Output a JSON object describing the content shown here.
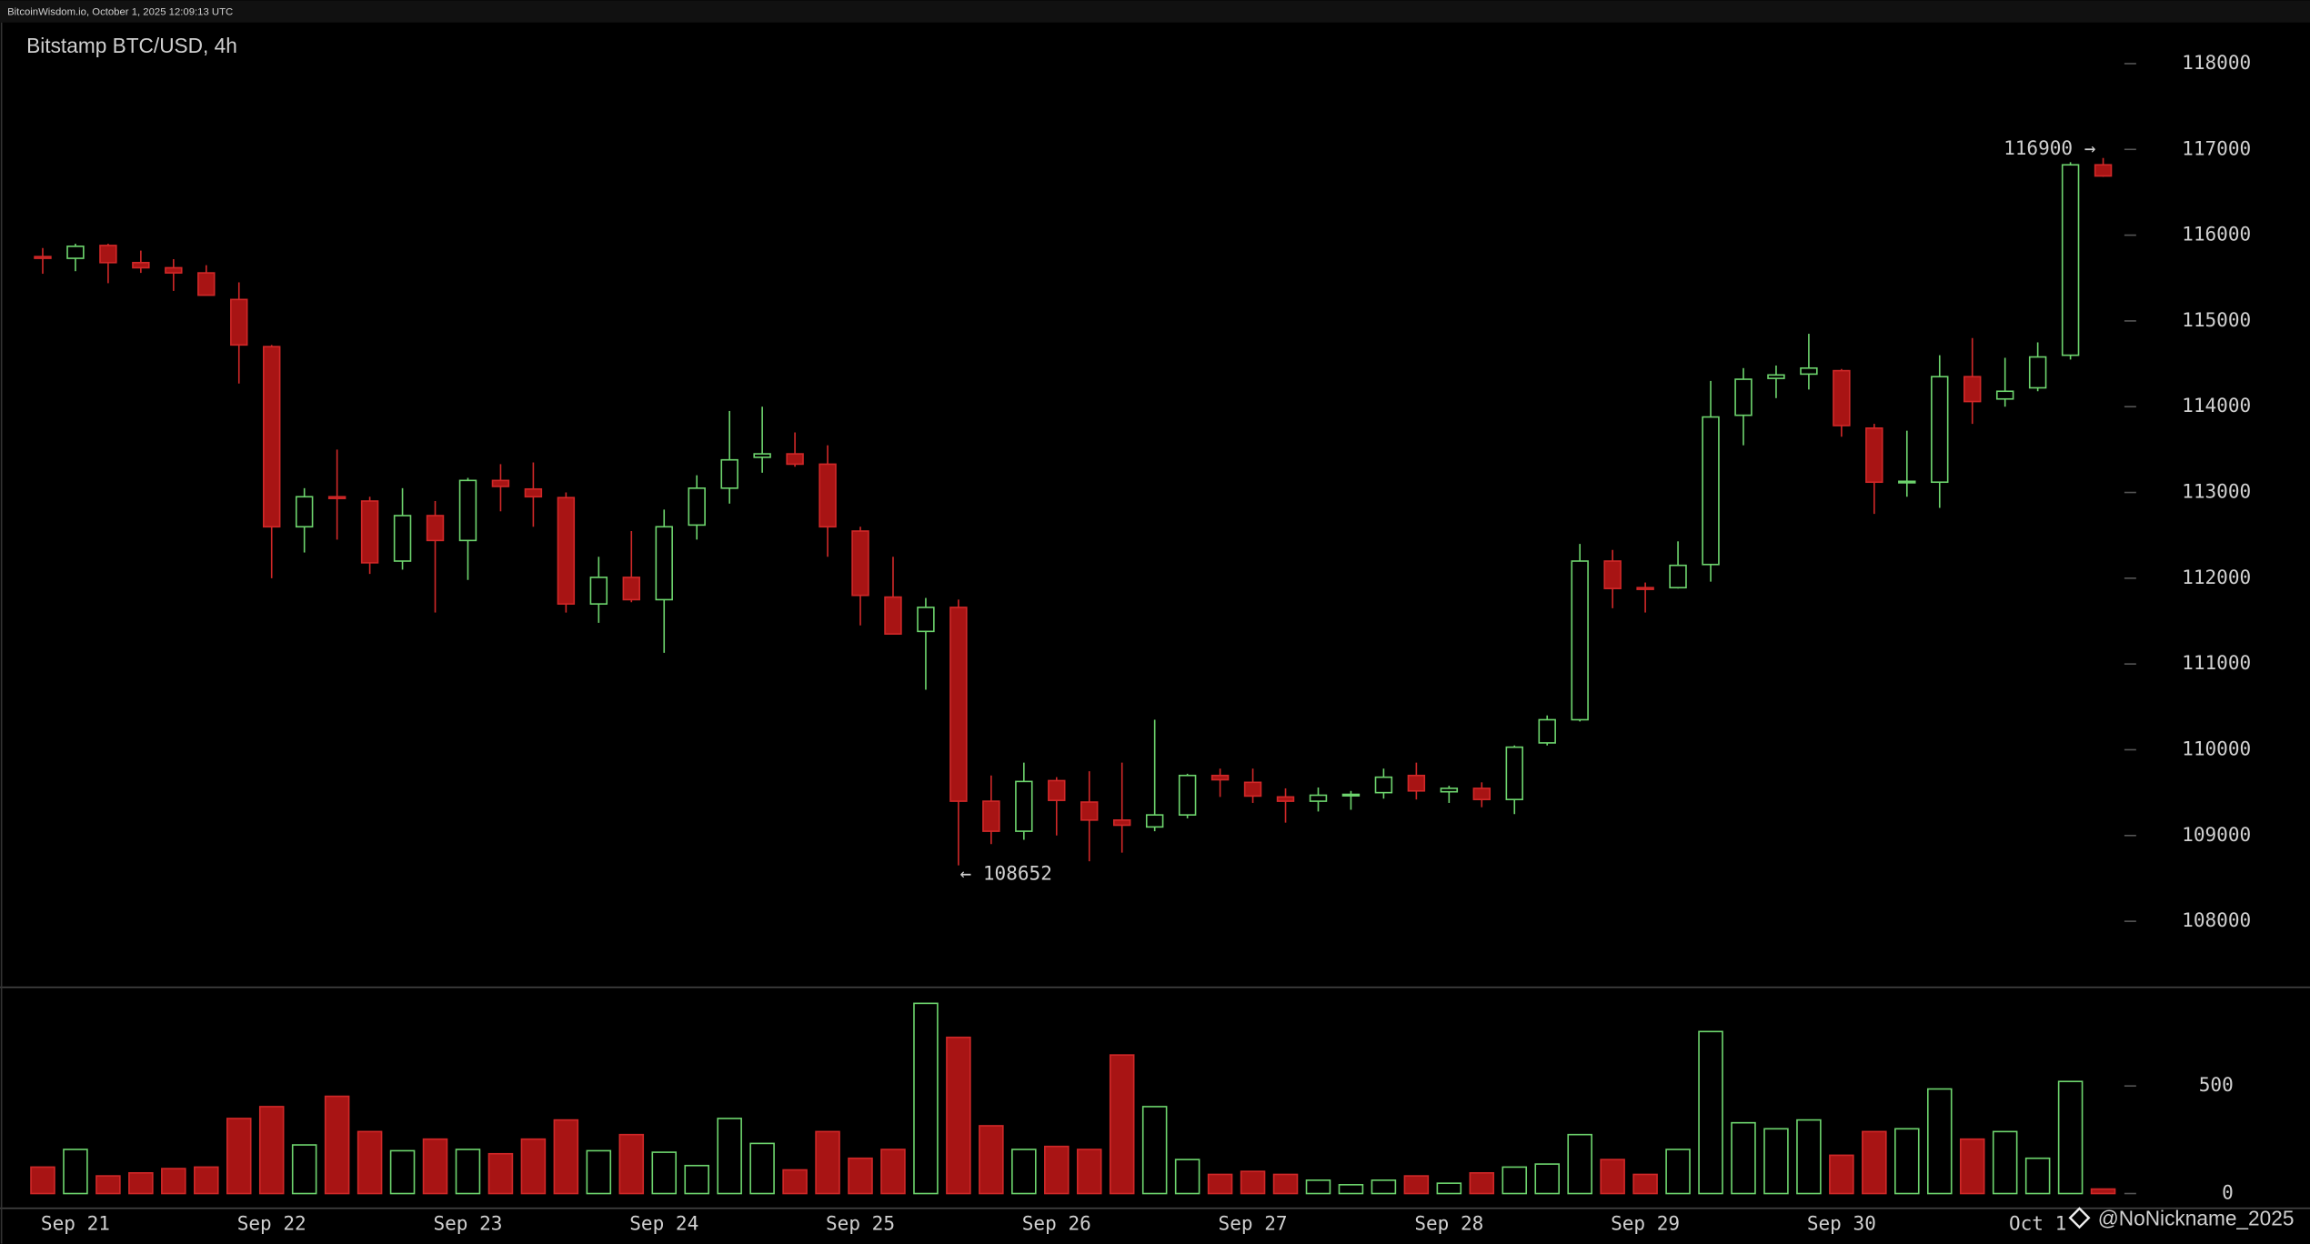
{
  "header": "BitcoinWisdom.io, October 1, 2025 12:09:13 UTC",
  "watermark": "@NoNickname_2025",
  "chart_data": {
    "type": "candlestick",
    "title": "Bitstamp BTC/USD, 4h",
    "categories": [
      null,
      "Sep 21",
      null,
      null,
      null,
      null,
      null,
      "Sep 22",
      null,
      null,
      null,
      null,
      null,
      "Sep 23",
      null,
      null,
      null,
      null,
      null,
      "Sep 24",
      null,
      null,
      null,
      null,
      null,
      "Sep 25",
      null,
      null,
      null,
      null,
      null,
      "Sep 26",
      null,
      null,
      null,
      null,
      null,
      "Sep 27",
      null,
      null,
      null,
      null,
      null,
      "Sep 28",
      null,
      null,
      null,
      null,
      null,
      "Sep 29",
      null,
      null,
      null,
      null,
      null,
      "Sep 30",
      null,
      null,
      null,
      null,
      null,
      "Oct 1",
      null,
      null
    ],
    "open": [
      115750,
      115730,
      115880,
      115680,
      115620,
      115560,
      115250,
      114700,
      112600,
      112950,
      112900,
      112200,
      112730,
      112440,
      113140,
      113040,
      112940,
      111700,
      112010,
      111750,
      112620,
      113050,
      113410,
      113450,
      113330,
      112550,
      111780,
      111380,
      111660,
      109400,
      109050,
      109640,
      109390,
      109180,
      109100,
      109240,
      109700,
      109620,
      109450,
      109400,
      109470,
      109500,
      109700,
      109510,
      109550,
      109420,
      110080,
      110350,
      112200,
      111890,
      111890,
      112160,
      113900,
      114330,
      114380,
      114420,
      113750,
      113120,
      113120,
      114350,
      114090,
      114220,
      114600,
      116820
    ],
    "high": [
      115850,
      115900,
      115900,
      115820,
      115720,
      115650,
      115450,
      114720,
      113050,
      113500,
      112950,
      113050,
      112900,
      113170,
      113330,
      113350,
      113000,
      112250,
      112550,
      112800,
      113200,
      113950,
      114000,
      113700,
      113550,
      112600,
      112250,
      111770,
      111750,
      109700,
      109850,
      109680,
      109750,
      109850,
      110350,
      109720,
      109780,
      109780,
      109550,
      109560,
      109520,
      109780,
      109850,
      109580,
      109620,
      110050,
      110400,
      112400,
      112330,
      111950,
      112430,
      114300,
      114450,
      114480,
      114850,
      114440,
      113800,
      113720,
      114600,
      114800,
      114570,
      114750,
      116850,
      116900
    ],
    "low": [
      115550,
      115580,
      115440,
      115560,
      115350,
      115300,
      114270,
      112000,
      112300,
      112450,
      112050,
      112100,
      111600,
      111980,
      112780,
      112600,
      111600,
      111480,
      111720,
      111130,
      112450,
      112870,
      113230,
      113300,
      112250,
      111450,
      111350,
      110700,
      108652,
      108900,
      108950,
      109000,
      108700,
      108800,
      109050,
      109200,
      109450,
      109380,
      109150,
      109280,
      109300,
      109430,
      109420,
      109380,
      109330,
      109250,
      110050,
      110330,
      111650,
      111600,
      111880,
      111960,
      113550,
      114100,
      114200,
      113650,
      112750,
      112950,
      112820,
      113800,
      114000,
      114180,
      114550,
      116680
    ],
    "close": [
      115730,
      115870,
      115680,
      115620,
      115560,
      115300,
      114720,
      112600,
      112950,
      112930,
      112180,
      112730,
      112440,
      113140,
      113070,
      112950,
      111700,
      112010,
      111750,
      112600,
      113050,
      113380,
      113450,
      113330,
      112600,
      111800,
      111350,
      111660,
      109400,
      109050,
      109630,
      109410,
      109180,
      109120,
      109240,
      109700,
      109650,
      109460,
      109400,
      109470,
      109480,
      109680,
      109520,
      109550,
      109420,
      110030,
      110350,
      112200,
      111880,
      111870,
      112150,
      113880,
      114320,
      114370,
      114450,
      113780,
      113120,
      113130,
      114350,
      114060,
      114180,
      114580,
      116820,
      116690
    ],
    "volume": [
      123,
      205,
      82,
      96,
      116,
      123,
      349,
      404,
      226,
      452,
      288,
      199,
      253,
      205,
      185,
      253,
      342,
      199,
      274,
      192,
      130,
      349,
      233,
      110,
      288,
      164,
      205,
      884,
      726,
      315,
      205,
      219,
      205,
      644,
      404,
      158,
      89,
      103,
      89,
      62,
      41,
      62,
      82,
      48,
      96,
      123,
      137,
      274,
      158,
      89,
      205,
      753,
      329,
      301,
      342,
      178,
      288,
      301,
      486,
      253,
      288,
      164,
      521,
      21
    ],
    "up_color": "#6dd46d",
    "down_color": "#a81414",
    "ylim": [
      107230,
      118480
    ],
    "yticks": [
      108000,
      109000,
      110000,
      111000,
      112000,
      113000,
      114000,
      115000,
      116000,
      117000,
      118000
    ],
    "volume_ylim": [
      0,
      890
    ],
    "volume_yticks": [
      0,
      500
    ],
    "annotations": [
      {
        "value": 116900,
        "label": "116900 →"
      },
      {
        "value": 108652,
        "label": "← 108652"
      }
    ]
  }
}
